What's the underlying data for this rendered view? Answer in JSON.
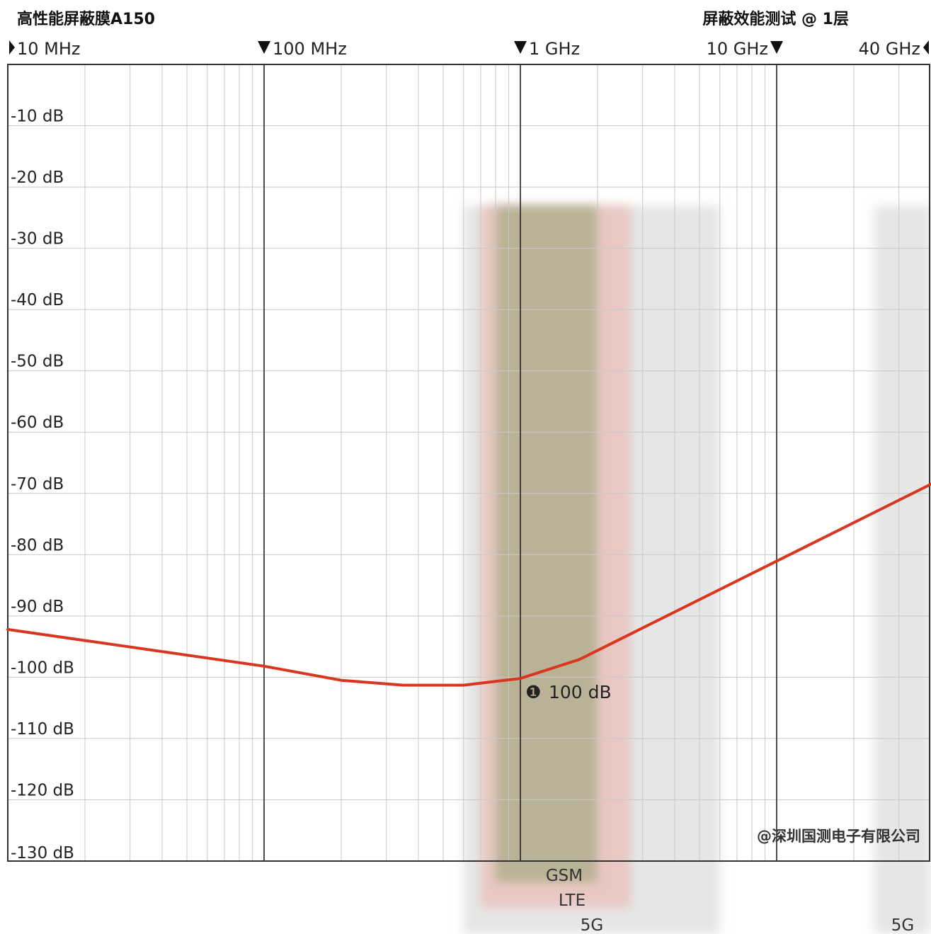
{
  "header": {
    "title_left": "高性能屏蔽膜A150",
    "title_right": "屏蔽效能测试 @ 1层"
  },
  "watermark": "@深圳国测电子有限公司",
  "chart_data": {
    "type": "line",
    "x_scale": "log",
    "xlim_hz": [
      10000000,
      40000000000
    ],
    "ylim_db": [
      -130,
      0
    ],
    "grid": true,
    "freq_markers": [
      {
        "label": "10 MHz",
        "hz": 10000000,
        "marker": "right-triangle"
      },
      {
        "label": "100 MHz",
        "hz": 100000000,
        "marker": "down-triangle"
      },
      {
        "label": "1 GHz",
        "hz": 1000000000,
        "marker": "down-triangle"
      },
      {
        "label": "10 GHz",
        "hz": 10000000000,
        "marker": "down-triangle"
      },
      {
        "label": "40 GHz",
        "hz": 40000000000,
        "marker": "left-triangle"
      }
    ],
    "y_ticks": [
      {
        "label": "-10 dB",
        "value": -10
      },
      {
        "label": "-20 dB",
        "value": -20
      },
      {
        "label": "-30 dB",
        "value": -30
      },
      {
        "label": "-40 dB",
        "value": -40
      },
      {
        "label": "-50 dB",
        "value": -50
      },
      {
        "label": "-60 dB",
        "value": -60
      },
      {
        "label": "-70 dB",
        "value": -70
      },
      {
        "label": "-80 dB",
        "value": -80
      },
      {
        "label": "-90 dB",
        "value": -90
      },
      {
        "label": "-100 dB",
        "value": -100
      },
      {
        "label": "-110 dB",
        "value": -110
      },
      {
        "label": "-120 dB",
        "value": -120
      },
      {
        "label": "-130 dB",
        "value": -130
      }
    ],
    "series": [
      {
        "color": "#d9361f",
        "x_hz": [
          10000000,
          100000000,
          200000000,
          350000000,
          600000000,
          1000000000,
          1700000000,
          40000000000
        ],
        "y_db": [
          -92.2,
          -98.2,
          -100.5,
          -101.3,
          -101.3,
          -100.2,
          -97.1,
          -68.5
        ]
      }
    ],
    "bands": [
      {
        "label": "GSM",
        "start_hz": 800000000,
        "end_hz": 2000000000,
        "color": "#6f8e4c",
        "opacity": 0.38
      },
      {
        "label": "LTE",
        "start_hz": 700000000,
        "end_hz": 2700000000,
        "color": "#ee8f80",
        "opacity": 0.35
      },
      {
        "label": "5G",
        "start_hz": 600000000,
        "end_hz": 6000000000,
        "color": "#c8c8c8",
        "opacity": 0.45
      },
      {
        "label": "5G",
        "start_hz": 24000000000,
        "end_hz": 40000000000,
        "color": "#c8c8c8",
        "opacity": 0.45
      }
    ],
    "annotation": {
      "marker": "❶",
      "text": "100 dB",
      "x_hz": 1000000000,
      "y_db": -100.2
    }
  }
}
